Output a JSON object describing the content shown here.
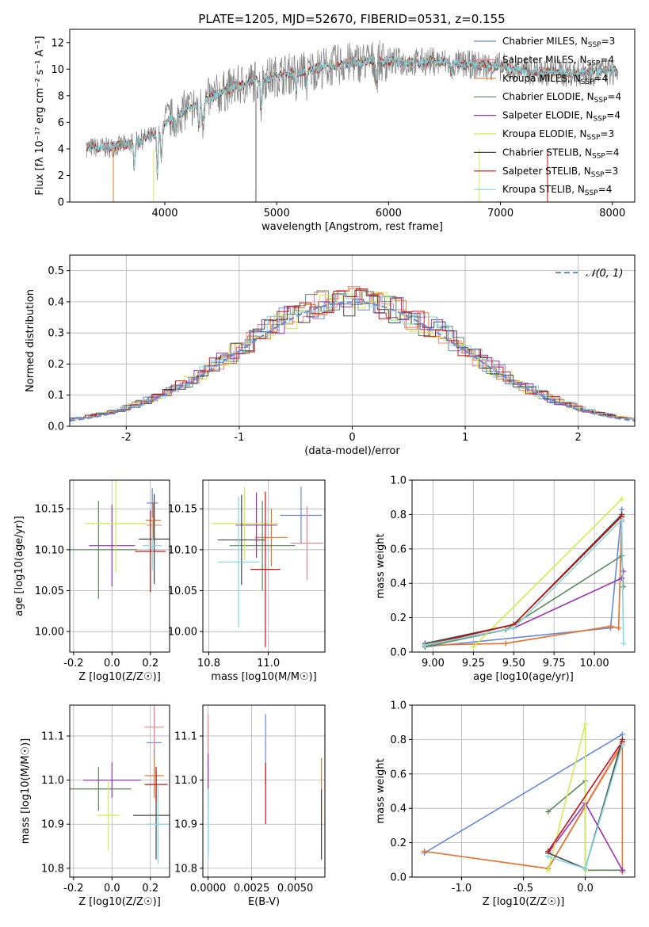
{
  "page": {
    "title": "PLATE=1205, MJD=52670, FIBERID=0531, z=0.155"
  },
  "models": [
    {
      "name": "Chabrier MILES",
      "nssp": "3",
      "color": "#6688dd"
    },
    {
      "name": "Salpeter MILES",
      "nssp": "4",
      "color": "#f0808a"
    },
    {
      "name": "Kroupa MILES",
      "nssp": "4",
      "color": "#e07a30"
    },
    {
      "name": "Chabrier ELODIE",
      "nssp": "4",
      "color": "#5a8a5a"
    },
    {
      "name": "Salpeter ELODIE",
      "nssp": "4",
      "color": "#9b30b8"
    },
    {
      "name": "Kroupa ELODIE",
      "nssp": "3",
      "color": "#d4ec50"
    },
    {
      "name": "Chabrier STELIB",
      "nssp": "4",
      "color": "#444444"
    },
    {
      "name": "Salpeter STELIB",
      "nssp": "3",
      "color": "#c81010"
    },
    {
      "name": "Kroupa STELIB",
      "nssp": "4",
      "color": "#80d8e0"
    }
  ],
  "chart_data": [
    {
      "id": "spectrum",
      "type": "line",
      "title": "PLATE=1205, MJD=52670, FIBERID=0531, z=0.155",
      "xlabel": "wavelength [Angstrom, rest frame]",
      "ylabel": "Flux [fλ 10⁻¹⁷ erg cm⁻² s⁻¹ A⁻¹]",
      "xlim": [
        3150,
        8200
      ],
      "ylim": [
        0,
        13
      ],
      "xticks": [
        4000,
        5000,
        6000,
        7000,
        8000
      ],
      "yticks": [
        0,
        2,
        4,
        6,
        8,
        10,
        12
      ],
      "grid": false,
      "legend": "right",
      "data_color": "#808080",
      "continuum": {
        "x": [
          3300,
          3500,
          3700,
          3900,
          4000,
          4200,
          4400,
          4600,
          4800,
          5000,
          5200,
          5400,
          5600,
          5800,
          6000,
          6200,
          6400,
          6600,
          6800,
          7000,
          7200,
          7400,
          7600,
          7800,
          8000
        ],
        "y": [
          4.1,
          4.1,
          4.4,
          5.0,
          6.0,
          7.0,
          7.8,
          8.6,
          9.1,
          9.5,
          9.8,
          10.1,
          10.4,
          10.6,
          10.6,
          10.5,
          10.6,
          10.4,
          10.3,
          10.2,
          9.9,
          9.8,
          9.7,
          9.8,
          9.8
        ]
      }
    },
    {
      "id": "residuals",
      "type": "histogram",
      "xlabel": "(data-model)/error",
      "ylabel": "Normed distribution",
      "xlim": [
        -2.5,
        2.5
      ],
      "ylim": [
        0,
        0.55
      ],
      "xticks": [
        -2,
        -1,
        0,
        1,
        2
      ],
      "yticks": [
        0.0,
        0.1,
        0.2,
        0.3,
        0.4,
        0.5
      ],
      "grid": true,
      "legend": "top-right",
      "reference_label": "𝒩(0, 1)",
      "reference_color": "#6688dd"
    },
    {
      "id": "age-vs-Z",
      "type": "scatter",
      "xlabel": "Z [log10(Z/Z☉)]",
      "ylabel": "age  [log10(age/yr)]",
      "xlim": [
        -0.22,
        0.3
      ],
      "ylim": [
        9.975,
        10.185
      ],
      "xticks": [
        -0.2,
        0.0,
        0.2
      ],
      "yticks": [
        10.0,
        10.05,
        10.1,
        10.15
      ],
      "grid": true,
      "points": [
        {
          "x": 0.21,
          "y": 10.157,
          "xerr": 0.03,
          "yerr": 0.018
        },
        {
          "x": 0.22,
          "y": 10.13,
          "xerr": 0.04,
          "yerr": 0.018
        },
        {
          "x": 0.215,
          "y": 10.136,
          "xerr": 0.04,
          "yerr": 0.022
        },
        {
          "x": -0.07,
          "y": 10.1,
          "xerr": 0.2,
          "yerr": 0.06
        },
        {
          "x": 0.0,
          "y": 10.105,
          "xerr": 0.12,
          "yerr": 0.05
        },
        {
          "x": 0.02,
          "y": 10.132,
          "xerr": 0.16,
          "yerr": 0.06
        },
        {
          "x": 0.22,
          "y": 10.113,
          "xerr": 0.08,
          "yerr": 0.055
        },
        {
          "x": 0.2,
          "y": 10.098,
          "xerr": 0.08,
          "yerr": 0.05
        },
        {
          "x": 0.21,
          "y": 10.105,
          "xerr": 0.05,
          "yerr": 0.03
        }
      ]
    },
    {
      "id": "age-vs-mass",
      "type": "scatter",
      "xlabel": "mass [log10(M/M☉)]",
      "ylabel": "",
      "xlim": [
        10.78,
        11.19
      ],
      "ylim": [
        9.975,
        10.185
      ],
      "xticks": [
        10.8,
        11.0
      ],
      "yticks": [
        10.0,
        10.05,
        10.1,
        10.15
      ],
      "grid": true,
      "points": [
        {
          "x": 11.11,
          "y": 10.142,
          "xerr": 0.07,
          "yerr": 0.035
        },
        {
          "x": 11.13,
          "y": 10.108,
          "xerr": 0.055,
          "yerr": 0.045
        },
        {
          "x": 11.01,
          "y": 10.115,
          "xerr": 0.055,
          "yerr": 0.035
        },
        {
          "x": 10.98,
          "y": 10.105,
          "xerr": 0.11,
          "yerr": 0.055
        },
        {
          "x": 10.96,
          "y": 10.13,
          "xerr": 0.07,
          "yerr": 0.04
        },
        {
          "x": 10.92,
          "y": 10.132,
          "xerr": 0.11,
          "yerr": 0.045
        },
        {
          "x": 10.91,
          "y": 10.112,
          "xerr": 0.08,
          "yerr": 0.055
        },
        {
          "x": 10.99,
          "y": 10.076,
          "xerr": 0.05,
          "yerr": 0.095
        },
        {
          "x": 10.9,
          "y": 10.085,
          "xerr": 0.07,
          "yerr": 0.08
        }
      ]
    },
    {
      "id": "mass-weight-vs-age",
      "type": "line",
      "xlabel": "age  [log10(age/yr)]",
      "ylabel": "mass weight",
      "xlim": [
        8.87,
        10.25
      ],
      "ylim": [
        0,
        1.0
      ],
      "xticks": [
        9.0,
        9.25,
        9.5,
        9.75,
        10.0
      ],
      "yticks": [
        0.0,
        0.2,
        0.4,
        0.6,
        0.8,
        1.0
      ],
      "grid": true,
      "series": [
        {
          "x": [
            8.95,
            10.1,
            10.17
          ],
          "y": [
            0.03,
            0.14,
            0.83
          ]
        },
        {
          "x": [
            8.95,
            9.45,
            10.1,
            10.15,
            10.17
          ],
          "y": [
            0.04,
            0.05,
            0.15,
            0.14,
            0.78
          ]
        },
        {
          "x": [
            8.95,
            9.45,
            10.1,
            10.15,
            10.17
          ],
          "y": [
            0.04,
            0.05,
            0.15,
            0.14,
            0.76
          ]
        },
        {
          "x": [
            8.95,
            9.45,
            10.17,
            10.18
          ],
          "y": [
            0.03,
            0.13,
            0.56,
            0.38
          ]
        },
        {
          "x": [
            8.95,
            9.5,
            10.17,
            10.18
          ],
          "y": [
            0.04,
            0.14,
            0.43,
            0.47
          ]
        },
        {
          "x": [
            9.25,
            10.17
          ],
          "y": [
            0.03,
            0.89
          ]
        },
        {
          "x": [
            8.95,
            9.5,
            10.17
          ],
          "y": [
            0.05,
            0.16,
            0.8
          ]
        },
        {
          "x": [
            8.95,
            9.5,
            10.17
          ],
          "y": [
            0.04,
            0.16,
            0.79
          ]
        },
        {
          "x": [
            8.95,
            9.5,
            10.17,
            10.18
          ],
          "y": [
            0.04,
            0.14,
            0.77,
            0.05
          ]
        }
      ]
    },
    {
      "id": "mass-vs-Z",
      "type": "scatter",
      "xlabel": "Z [log10(Z/Z☉)]",
      "ylabel": "mass [log10(M/M☉)]",
      "xlim": [
        -0.22,
        0.3
      ],
      "ylim": [
        10.78,
        11.17
      ],
      "xticks": [
        -0.2,
        0.0,
        0.2
      ],
      "yticks": [
        10.8,
        10.9,
        11.0,
        11.1
      ],
      "grid": true,
      "points": [
        {
          "x": 0.22,
          "y": 11.085,
          "xerr": 0.04,
          "yerr": 0.07
        },
        {
          "x": 0.22,
          "y": 11.12,
          "xerr": 0.05,
          "yerr": 0.05
        },
        {
          "x": 0.22,
          "y": 11.01,
          "xerr": 0.05,
          "yerr": 0.05
        },
        {
          "x": -0.07,
          "y": 10.98,
          "xerr": 0.17,
          "yerr": 0.05
        },
        {
          "x": 0.0,
          "y": 11.0,
          "xerr": 0.15,
          "yerr": 0.04
        },
        {
          "x": -0.02,
          "y": 10.92,
          "xerr": 0.06,
          "yerr": 0.08
        },
        {
          "x": 0.23,
          "y": 10.92,
          "xerr": 0.12,
          "yerr": 0.1
        },
        {
          "x": 0.23,
          "y": 10.99,
          "xerr": 0.06,
          "yerr": 0.04
        },
        {
          "x": 0.24,
          "y": 10.9,
          "xerr": 0.06,
          "yerr": 0.09
        }
      ]
    },
    {
      "id": "mass-vs-ebv",
      "type": "scatter",
      "xlabel": "E(B-V)",
      "ylabel": "",
      "xlim": [
        -0.0003,
        0.0067
      ],
      "ylim": [
        10.78,
        11.17
      ],
      "xticks": [
        0.0,
        0.0025,
        0.005
      ],
      "yticks": [
        10.8,
        10.9,
        11.0,
        11.1
      ],
      "xticklabels": [
        "0.0000",
        "0.0025",
        "0.0050"
      ],
      "grid": true,
      "points": [
        {
          "x": 0.0033,
          "y": 11.07,
          "xerr": 0,
          "yerr": 0.08
        },
        {
          "x": 0.0,
          "y": 11.08,
          "xerr": 0,
          "yerr": 0.07
        },
        {
          "x": 0.0065,
          "y": 10.97,
          "xerr": 0,
          "yerr": 0.08
        },
        {
          "x": 0.0,
          "y": 10.93,
          "xerr": 0,
          "yerr": 0.1
        },
        {
          "x": 0.0,
          "y": 11.0,
          "xerr": 0,
          "yerr": 0.06
        },
        {
          "x": 0.0,
          "y": 10.92,
          "xerr": 0,
          "yerr": 0.06
        },
        {
          "x": 0.0065,
          "y": 10.9,
          "xerr": 0,
          "yerr": 0.08
        },
        {
          "x": 0.0033,
          "y": 10.97,
          "xerr": 0,
          "yerr": 0.07
        },
        {
          "x": 0.0,
          "y": 10.9,
          "xerr": 0,
          "yerr": 0.08
        }
      ]
    },
    {
      "id": "mass-weight-vs-Z",
      "type": "line",
      "xlabel": "Z [log10(Z/Z☉)]",
      "ylabel": "mass weight",
      "xlim": [
        -1.4,
        0.4
      ],
      "ylim": [
        0,
        1.0
      ],
      "xticks": [
        -1.0,
        -0.5,
        0.0
      ],
      "yticks": [
        0.0,
        0.2,
        0.4,
        0.6,
        0.8,
        1.0
      ],
      "grid": true,
      "series": [
        {
          "x": [
            -1.3,
            0.3
          ],
          "y": [
            0.14,
            0.83
          ]
        },
        {
          "x": [
            -1.3,
            -0.3,
            0.3
          ],
          "y": [
            0.15,
            0.05,
            0.78
          ]
        },
        {
          "x": [
            -1.3,
            -0.3,
            0.3,
            0.3
          ],
          "y": [
            0.15,
            0.05,
            0.77,
            0.03
          ]
        },
        {
          "x": [
            -0.3,
            0.0,
            0.0,
            0.3
          ],
          "y": [
            0.38,
            0.56,
            0.04,
            0.04
          ]
        },
        {
          "x": [
            -0.3,
            0.0,
            0.3
          ],
          "y": [
            0.14,
            0.43,
            0.04
          ]
        },
        {
          "x": [
            -0.3,
            0.0,
            0.0
          ],
          "y": [
            0.04,
            0.89,
            0.04
          ]
        },
        {
          "x": [
            -0.3,
            0.0,
            0.3
          ],
          "y": [
            0.14,
            0.05,
            0.8
          ]
        },
        {
          "x": [
            -0.3,
            0.3
          ],
          "y": [
            0.15,
            0.79
          ]
        },
        {
          "x": [
            -0.3,
            0.0,
            0.3
          ],
          "y": [
            0.12,
            0.05,
            0.77
          ]
        }
      ]
    }
  ]
}
